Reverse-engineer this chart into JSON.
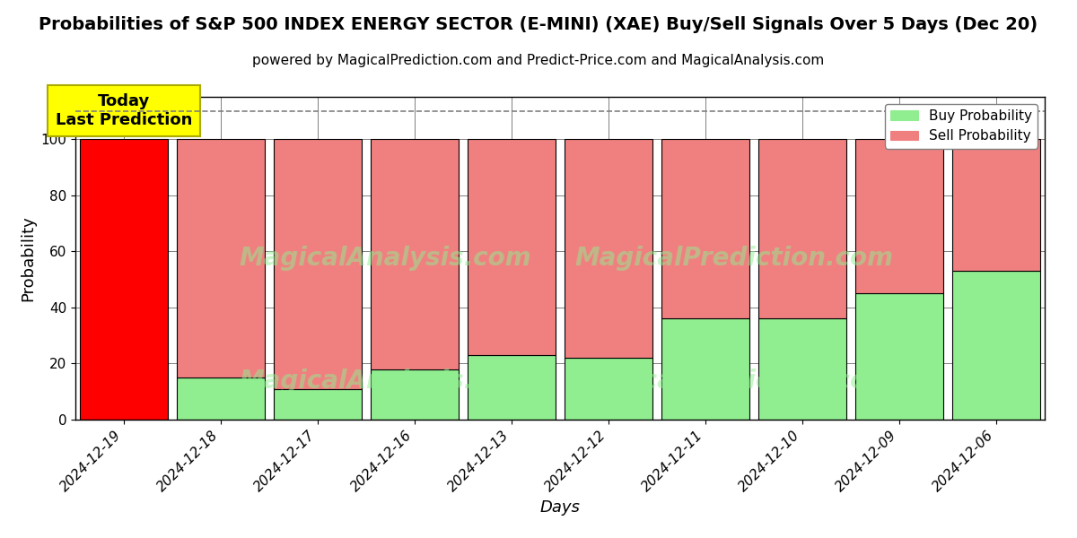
{
  "title": "Probabilities of S&P 500 INDEX ENERGY SECTOR (E-MINI) (XAE) Buy/Sell Signals Over 5 Days (Dec 20)",
  "subtitle": "powered by MagicalPrediction.com and Predict-Price.com and MagicalAnalysis.com",
  "xlabel": "Days",
  "ylabel": "Probability",
  "categories": [
    "2024-12-19",
    "2024-12-18",
    "2024-12-17",
    "2024-12-16",
    "2024-12-13",
    "2024-12-12",
    "2024-12-11",
    "2024-12-10",
    "2024-12-09",
    "2024-12-06"
  ],
  "buy_values": [
    0,
    15,
    11,
    18,
    23,
    22,
    36,
    36,
    45,
    53
  ],
  "sell_values": [
    100,
    85,
    89,
    82,
    77,
    78,
    64,
    64,
    55,
    47
  ],
  "first_bar_buy_color": "#ff0000",
  "first_bar_sell_color": "#ff0000",
  "buy_color": "#90ee90",
  "sell_color": "#f08080",
  "bar_edge_color": "#000000",
  "annotation_text": "Today\nLast Prediction",
  "annotation_bg": "#ffff00",
  "dashed_line_y": 110,
  "ylim": [
    0,
    115
  ],
  "yticks": [
    0,
    20,
    40,
    60,
    80,
    100
  ],
  "title_fontsize": 14,
  "subtitle_fontsize": 11,
  "axis_label_fontsize": 13,
  "tick_fontsize": 11,
  "legend_fontsize": 11,
  "bar_width": 0.9
}
